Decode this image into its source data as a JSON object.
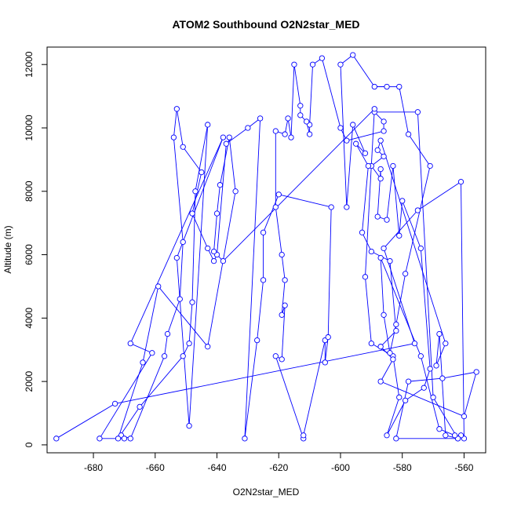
{
  "chart_data": {
    "type": "line",
    "title": "ATOM2 Southbound O2N2star_MED",
    "xlabel": "O2N2star_MED",
    "ylabel": "Altitude (m)",
    "xlim": [
      -695,
      -553
    ],
    "ylim": [
      -250,
      12550
    ],
    "xticks": [
      -680,
      -660,
      -640,
      -620,
      -600,
      -580,
      -560
    ],
    "yticks": [
      0,
      2000,
      4000,
      6000,
      8000,
      10000,
      12000
    ],
    "grid": false,
    "marker": "open-circle",
    "line_color": "#0000ff",
    "series": [
      {
        "x": [
          -692,
          -673,
          -576,
          -586,
          -575,
          -561,
          -560,
          -561,
          -562,
          -570,
          -575,
          -589,
          -586,
          -586,
          -598,
          -600,
          -606,
          -609,
          -610,
          -610,
          -611,
          -613,
          -613,
          -615,
          -616,
          -617,
          -618,
          -621,
          -621,
          -619,
          -618,
          -619,
          -618,
          -619,
          -621,
          -612,
          -612,
          -605,
          -605,
          -604,
          -603,
          -620,
          -625,
          -625,
          -627,
          -631,
          -626,
          -630,
          -637,
          -640,
          -641,
          -643,
          -648,
          -645,
          -651,
          -653,
          -654,
          -651,
          -652,
          -656,
          -657,
          -668,
          -671,
          -670,
          -678,
          -661,
          -668,
          -638,
          -653,
          -649,
          -643,
          -647,
          -648,
          -649,
          -651,
          -665,
          -672,
          -664,
          -659,
          -643,
          -634,
          -636,
          -639,
          -640,
          -641,
          -638,
          -589,
          -592,
          -590,
          -583,
          -581,
          -585,
          -579,
          -573,
          -571,
          -574,
          -580,
          -581,
          -583,
          -585,
          -588,
          -587,
          -587,
          -590,
          -586,
          -588,
          -587,
          -566,
          -569,
          -568,
          -566,
          -562,
          -582,
          -578,
          -567,
          -556,
          -560,
          -587,
          -583,
          -587,
          -582,
          -584,
          -590,
          -593,
          -591,
          -595,
          -592,
          -596,
          -598,
          -600,
          -596,
          -589,
          -585,
          -581,
          -578,
          -571,
          -579,
          -582,
          -584,
          -586,
          -587,
          -574,
          -568,
          -563
        ],
        "y": [
          200,
          1300,
          3200,
          6200,
          7400,
          8300,
          200,
          300,
          200,
          1500,
          10500,
          10500,
          10200,
          9900,
          9600,
          10000,
          12200,
          12000,
          10100,
          9800,
          10200,
          10400,
          10700,
          12000,
          9700,
          10300,
          9800,
          9900,
          7500,
          6000,
          5200,
          4100,
          4400,
          2700,
          2800,
          200,
          300,
          3300,
          2600,
          3400,
          7500,
          7900,
          6700,
          5200,
          3300,
          200,
          10300,
          10000,
          9500,
          6000,
          5800,
          6200,
          7300,
          8600,
          9400,
          10600,
          9700,
          6400,
          4600,
          3500,
          2800,
          200,
          300,
          200,
          200,
          2900,
          3200,
          9700,
          5900,
          600,
          10100,
          8000,
          4500,
          3200,
          2800,
          1200,
          200,
          2600,
          5000,
          3100,
          8000,
          9700,
          8200,
          7300,
          6100,
          5800,
          10600,
          5300,
          3200,
          2800,
          1500,
          300,
          1400,
          1800,
          2400,
          6200,
          7700,
          6600,
          8800,
          7100,
          7200,
          8700,
          8400,
          8800,
          9100,
          9300,
          9600,
          3200,
          2500,
          3500,
          300,
          200,
          200,
          2000,
          2100,
          2300,
          900,
          2000,
          2700,
          3100,
          3600,
          5800,
          6100,
          6700,
          8800,
          9500,
          9200,
          10100,
          7500,
          12000,
          12300,
          11300,
          11300,
          11300,
          9800,
          8800,
          5400,
          3800,
          2900,
          4100,
          5900,
          2800,
          500,
          300
        ]
      }
    ]
  }
}
